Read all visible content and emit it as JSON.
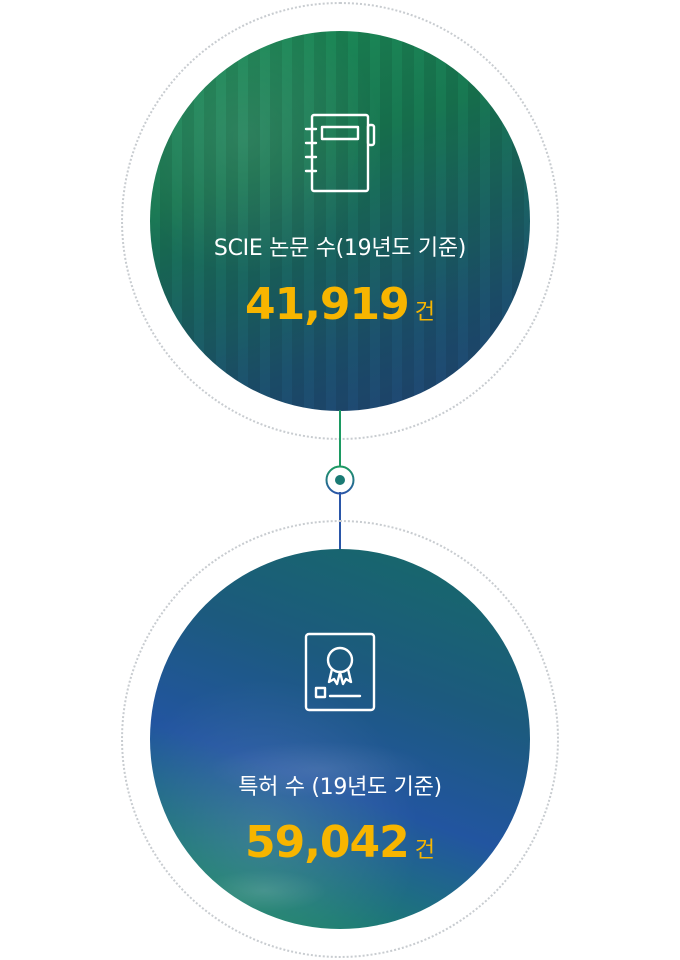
{
  "stats": [
    {
      "label": "SCIE 논문 수(19년도 기준)",
      "value": "41,919",
      "unit": "건",
      "icon": "notebook-icon",
      "theme_color": "#1c8a55"
    },
    {
      "label": "특허 수 (19년도 기준)",
      "value": "59,042",
      "unit": "건",
      "icon": "certificate-icon",
      "theme_color": "#2255a0"
    }
  ],
  "colors": {
    "value": "#f7b500",
    "label": "#ffffff",
    "connector_top": "#1c9a62",
    "connector_bottom": "#2a56a8"
  }
}
